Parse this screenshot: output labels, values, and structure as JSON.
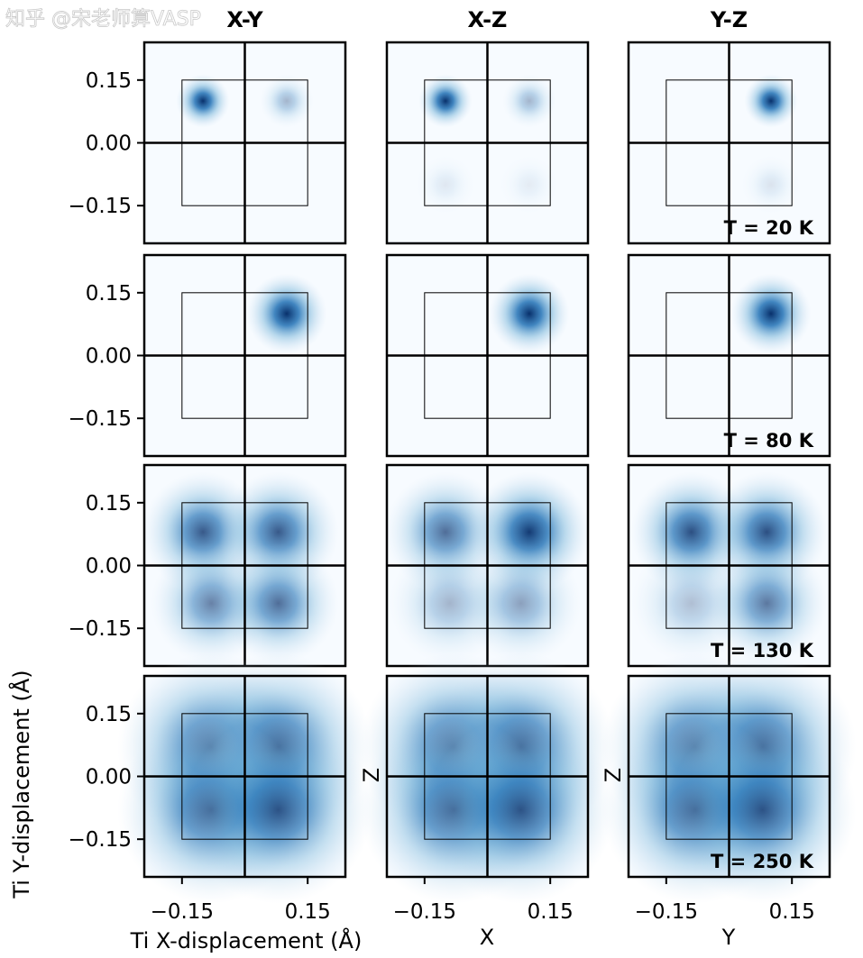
{
  "chart_data": {
    "type": "heatmap",
    "colormap": "Blues",
    "background_color": "#f7fbff",
    "columns": [
      "X-Y",
      "X-Z",
      "Y-Z"
    ],
    "temperatures": [
      "T = 20 K",
      "T = 80 K",
      "T = 130 K",
      "T = 250 K"
    ],
    "xlim": [
      -0.24,
      0.24
    ],
    "ylim": [
      -0.24,
      0.24
    ],
    "xticks": [
      -0.15,
      0.15
    ],
    "xtick_labels": [
      "−0.15",
      "0.15"
    ],
    "yticks": [
      0.15,
      0.0,
      -0.15
    ],
    "ytick_labels": [
      "0.15",
      "0.00",
      "−0.15"
    ],
    "inner_box": [
      -0.15,
      0.15
    ],
    "xlabels": [
      "Ti X-displacement (Å)",
      "X",
      "Y"
    ],
    "ylabels": [
      "Ti Y-displacement (Å)",
      "Z",
      "Z"
    ],
    "panels": [
      [
        {
          "blobs": [
            {
              "x": -0.1,
              "y": 0.1,
              "w": 1.0,
              "s": 0.02
            },
            {
              "x": 0.1,
              "y": 0.1,
              "w": 0.35,
              "s": 0.02
            }
          ]
        },
        {
          "blobs": [
            {
              "x": -0.1,
              "y": 0.1,
              "w": 1.0,
              "s": 0.02
            },
            {
              "x": 0.1,
              "y": 0.1,
              "w": 0.35,
              "s": 0.02
            },
            {
              "x": -0.1,
              "y": -0.1,
              "w": 0.1,
              "s": 0.022
            },
            {
              "x": 0.1,
              "y": -0.1,
              "w": 0.08,
              "s": 0.022
            }
          ]
        },
        {
          "blobs": [
            {
              "x": 0.1,
              "y": 0.1,
              "w": 1.0,
              "s": 0.02
            },
            {
              "x": 0.1,
              "y": -0.1,
              "w": 0.12,
              "s": 0.022
            }
          ]
        }
      ],
      [
        {
          "blobs": [
            {
              "x": 0.1,
              "y": 0.1,
              "w": 1.0,
              "s": 0.03
            }
          ]
        },
        {
          "blobs": [
            {
              "x": 0.1,
              "y": 0.1,
              "w": 1.0,
              "s": 0.03
            }
          ]
        },
        {
          "blobs": [
            {
              "x": 0.1,
              "y": 0.1,
              "w": 1.0,
              "s": 0.03
            }
          ]
        }
      ],
      [
        {
          "blobs": [
            {
              "x": -0.1,
              "y": 0.08,
              "w": 0.8,
              "s": 0.045
            },
            {
              "x": 0.08,
              "y": 0.08,
              "w": 0.8,
              "s": 0.045
            },
            {
              "x": -0.08,
              "y": -0.09,
              "w": 0.6,
              "s": 0.045
            },
            {
              "x": 0.08,
              "y": -0.09,
              "w": 0.7,
              "s": 0.045
            }
          ]
        },
        {
          "blobs": [
            {
              "x": -0.1,
              "y": 0.08,
              "w": 0.7,
              "s": 0.045
            },
            {
              "x": 0.1,
              "y": 0.08,
              "w": 0.95,
              "s": 0.045
            },
            {
              "x": -0.09,
              "y": -0.09,
              "w": 0.35,
              "s": 0.045
            },
            {
              "x": 0.08,
              "y": -0.09,
              "w": 0.45,
              "s": 0.045
            }
          ]
        },
        {
          "blobs": [
            {
              "x": -0.09,
              "y": 0.08,
              "w": 0.85,
              "s": 0.045
            },
            {
              "x": 0.09,
              "y": 0.08,
              "w": 0.85,
              "s": 0.045
            },
            {
              "x": -0.09,
              "y": -0.09,
              "w": 0.3,
              "s": 0.045
            },
            {
              "x": 0.09,
              "y": -0.09,
              "w": 0.65,
              "s": 0.045
            }
          ]
        }
      ],
      [
        {
          "blobs": [
            {
              "x": -0.08,
              "y": 0.07,
              "w": 0.8,
              "s": 0.07
            },
            {
              "x": 0.08,
              "y": 0.07,
              "w": 0.8,
              "s": 0.07
            },
            {
              "x": -0.08,
              "y": -0.08,
              "w": 0.8,
              "s": 0.07
            },
            {
              "x": 0.08,
              "y": -0.08,
              "w": 0.8,
              "s": 0.07
            }
          ]
        },
        {
          "blobs": [
            {
              "x": -0.08,
              "y": 0.07,
              "w": 0.8,
              "s": 0.07
            },
            {
              "x": 0.08,
              "y": 0.07,
              "w": 0.8,
              "s": 0.07
            },
            {
              "x": -0.08,
              "y": -0.08,
              "w": 0.8,
              "s": 0.07
            },
            {
              "x": 0.08,
              "y": -0.08,
              "w": 0.8,
              "s": 0.07
            }
          ]
        },
        {
          "blobs": [
            {
              "x": -0.08,
              "y": 0.07,
              "w": 0.8,
              "s": 0.07
            },
            {
              "x": 0.08,
              "y": 0.07,
              "w": 0.8,
              "s": 0.07
            },
            {
              "x": -0.08,
              "y": -0.08,
              "w": 0.8,
              "s": 0.07
            },
            {
              "x": 0.08,
              "y": -0.08,
              "w": 0.8,
              "s": 0.07
            }
          ]
        }
      ]
    ]
  },
  "watermark": "知乎 @宋老师算VASP"
}
